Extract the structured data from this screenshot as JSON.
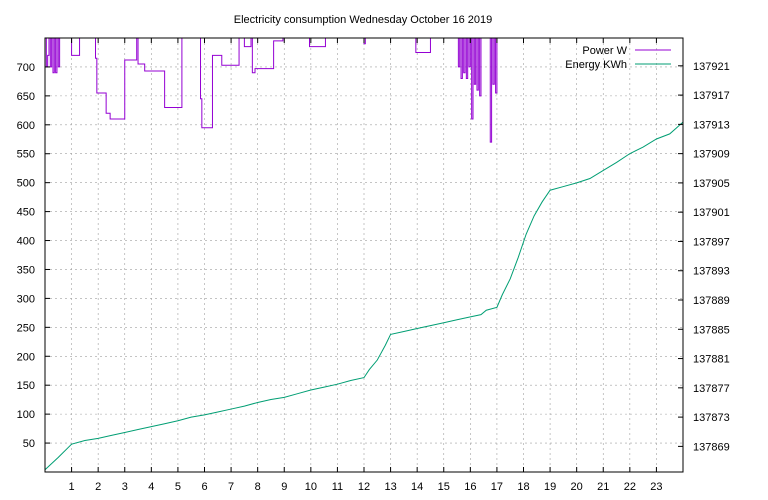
{
  "chart_data": {
    "type": "line",
    "title": "Electricity consumption Wednesday October 16 2019",
    "xlabel": "",
    "ylabel": "",
    "xlim": [
      0,
      24
    ],
    "ylim_left": [
      0,
      750
    ],
    "ylim_right": [
      137865.5,
      137924.8
    ],
    "x_ticks": [
      1,
      2,
      3,
      4,
      5,
      6,
      7,
      8,
      9,
      10,
      11,
      12,
      13,
      14,
      15,
      16,
      17,
      18,
      19,
      20,
      21,
      22,
      23
    ],
    "y_ticks_left": [
      50,
      100,
      150,
      200,
      250,
      300,
      350,
      400,
      450,
      500,
      550,
      600,
      650,
      700
    ],
    "y_ticks_right": [
      137869,
      137873,
      137877,
      137881,
      137885,
      137889,
      137893,
      137897,
      137901,
      137905,
      137909,
      137913,
      137917,
      137921
    ],
    "grid": true,
    "legend_position": "top-right",
    "series": [
      {
        "name": "Power W",
        "axis": "left",
        "color": "#9400d3",
        "style": "steps",
        "points": [
          [
            0.0,
            760
          ],
          [
            0.05,
            700
          ],
          [
            0.1,
            720
          ],
          [
            0.15,
            760
          ],
          [
            0.2,
            700
          ],
          [
            0.25,
            760
          ],
          [
            0.3,
            690
          ],
          [
            0.35,
            760
          ],
          [
            0.4,
            690
          ],
          [
            0.45,
            760
          ],
          [
            0.5,
            700
          ],
          [
            0.55,
            760
          ],
          [
            0.95,
            760
          ],
          [
            1.0,
            720
          ],
          [
            1.25,
            720
          ],
          [
            1.3,
            760
          ],
          [
            1.85,
            760
          ],
          [
            1.9,
            715
          ],
          [
            1.95,
            655
          ],
          [
            2.25,
            655
          ],
          [
            2.3,
            620
          ],
          [
            2.45,
            610
          ],
          [
            2.95,
            610
          ],
          [
            3.0,
            712
          ],
          [
            3.4,
            712
          ],
          [
            3.45,
            760
          ],
          [
            3.5,
            705
          ],
          [
            3.7,
            705
          ],
          [
            3.75,
            693
          ],
          [
            4.45,
            693
          ],
          [
            4.5,
            630
          ],
          [
            5.1,
            630
          ],
          [
            5.15,
            760
          ],
          [
            5.8,
            760
          ],
          [
            5.85,
            645
          ],
          [
            5.9,
            595
          ],
          [
            6.25,
            595
          ],
          [
            6.3,
            720
          ],
          [
            6.6,
            720
          ],
          [
            6.65,
            703
          ],
          [
            7.25,
            703
          ],
          [
            7.3,
            760
          ],
          [
            7.45,
            760
          ],
          [
            7.5,
            735
          ],
          [
            7.7,
            735
          ],
          [
            7.75,
            760
          ],
          [
            7.8,
            690
          ],
          [
            7.9,
            697
          ],
          [
            8.55,
            697
          ],
          [
            8.6,
            745
          ],
          [
            8.9,
            745
          ],
          [
            8.95,
            760
          ],
          [
            9.9,
            760
          ],
          [
            9.95,
            735
          ],
          [
            10.5,
            735
          ],
          [
            10.55,
            760
          ],
          [
            11.95,
            760
          ],
          [
            12.0,
            740
          ],
          [
            12.05,
            760
          ],
          [
            13.9,
            760
          ],
          [
            13.95,
            725
          ],
          [
            14.45,
            725
          ],
          [
            14.5,
            760
          ],
          [
            15.5,
            760
          ],
          [
            15.55,
            700
          ],
          [
            15.6,
            760
          ],
          [
            15.65,
            680
          ],
          [
            15.7,
            760
          ],
          [
            15.75,
            690
          ],
          [
            15.8,
            760
          ],
          [
            15.85,
            680
          ],
          [
            15.9,
            760
          ],
          [
            15.95,
            700
          ],
          [
            16.0,
            760
          ],
          [
            16.05,
            610
          ],
          [
            16.1,
            760
          ],
          [
            16.15,
            670
          ],
          [
            16.2,
            760
          ],
          [
            16.25,
            660
          ],
          [
            16.3,
            760
          ],
          [
            16.35,
            650
          ],
          [
            16.4,
            760
          ],
          [
            16.7,
            760
          ],
          [
            16.75,
            570
          ],
          [
            16.8,
            760
          ],
          [
            16.85,
            670
          ],
          [
            16.9,
            760
          ],
          [
            16.95,
            655
          ],
          [
            17.0,
            760
          ]
        ]
      },
      {
        "name": "Energy KWh",
        "axis": "right",
        "color": "#009e73",
        "style": "line",
        "points": [
          [
            0.0,
            137865.8
          ],
          [
            0.5,
            137867.5
          ],
          [
            1.0,
            137869.3
          ],
          [
            1.5,
            137869.8
          ],
          [
            2.0,
            137870.1
          ],
          [
            2.5,
            137870.5
          ],
          [
            3.0,
            137870.9
          ],
          [
            3.5,
            137871.3
          ],
          [
            4.0,
            137871.7
          ],
          [
            4.5,
            137872.1
          ],
          [
            5.0,
            137872.5
          ],
          [
            5.5,
            137873.0
          ],
          [
            6.0,
            137873.3
          ],
          [
            6.5,
            137873.7
          ],
          [
            7.0,
            137874.1
          ],
          [
            7.5,
            137874.5
          ],
          [
            8.0,
            137875.0
          ],
          [
            8.5,
            137875.4
          ],
          [
            9.0,
            137875.7
          ],
          [
            9.5,
            137876.2
          ],
          [
            10.0,
            137876.7
          ],
          [
            10.5,
            137877.1
          ],
          [
            11.0,
            137877.5
          ],
          [
            11.5,
            137878.0
          ],
          [
            12.0,
            137878.4
          ],
          [
            12.2,
            137879.5
          ],
          [
            12.5,
            137880.8
          ],
          [
            12.8,
            137882.8
          ],
          [
            13.0,
            137884.3
          ],
          [
            13.5,
            137884.7
          ],
          [
            14.0,
            137885.1
          ],
          [
            14.5,
            137885.5
          ],
          [
            15.0,
            137885.9
          ],
          [
            15.5,
            137886.3
          ],
          [
            16.0,
            137886.7
          ],
          [
            16.4,
            137887.0
          ],
          [
            16.6,
            137887.6
          ],
          [
            17.0,
            137888.0
          ],
          [
            17.2,
            137889.7
          ],
          [
            17.5,
            137891.9
          ],
          [
            17.8,
            137894.8
          ],
          [
            18.1,
            137898.0
          ],
          [
            18.4,
            137900.5
          ],
          [
            18.7,
            137902.4
          ],
          [
            19.0,
            137904.0
          ],
          [
            19.5,
            137904.5
          ],
          [
            20.0,
            137905.0
          ],
          [
            20.5,
            137905.6
          ],
          [
            21.0,
            137906.7
          ],
          [
            21.5,
            137907.8
          ],
          [
            22.0,
            137909.0
          ],
          [
            22.5,
            137909.9
          ],
          [
            23.0,
            137911.0
          ],
          [
            23.5,
            137911.7
          ],
          [
            24.0,
            137913.3
          ]
        ]
      }
    ]
  }
}
